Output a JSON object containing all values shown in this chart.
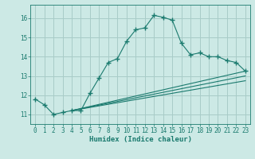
{
  "xlabel": "Humidex (Indice chaleur)",
  "background_color": "#cce9e5",
  "grid_color": "#a8ccc8",
  "line_color": "#1a7a6e",
  "xlim": [
    -0.5,
    23.5
  ],
  "ylim": [
    10.5,
    16.7
  ],
  "yticks": [
    11,
    12,
    13,
    14,
    15,
    16
  ],
  "xticks": [
    0,
    1,
    2,
    3,
    4,
    5,
    6,
    7,
    8,
    9,
    10,
    11,
    12,
    13,
    14,
    15,
    16,
    17,
    18,
    19,
    20,
    21,
    22,
    23
  ],
  "curve1_x": [
    0,
    1,
    2,
    3,
    4,
    5,
    6,
    7,
    8,
    9,
    10,
    11,
    12,
    13,
    14,
    15,
    16,
    17,
    18,
    19,
    20,
    21,
    22,
    23
  ],
  "curve1_y": [
    11.8,
    11.5,
    11.0,
    11.1,
    11.2,
    11.2,
    12.1,
    12.9,
    13.7,
    13.9,
    14.8,
    15.4,
    15.5,
    16.15,
    16.05,
    15.9,
    14.7,
    14.1,
    14.2,
    14.0,
    14.0,
    13.8,
    13.7,
    13.25
  ],
  "curve2_x": [
    4,
    23
  ],
  "curve2_y": [
    11.2,
    13.25
  ],
  "curve3_x": [
    4,
    23
  ],
  "curve3_y": [
    11.2,
    13.0
  ],
  "curve4_x": [
    4,
    23
  ],
  "curve4_y": [
    11.2,
    12.75
  ]
}
